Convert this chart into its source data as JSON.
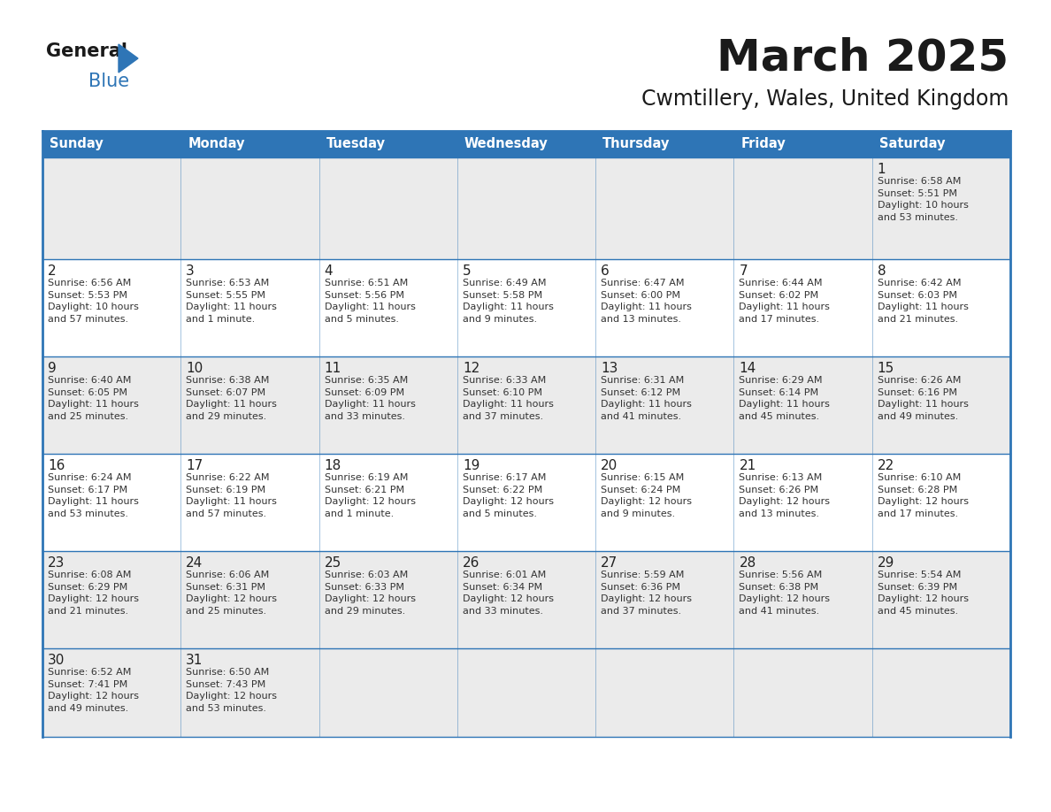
{
  "title": "March 2025",
  "subtitle": "Cwmtillery, Wales, United Kingdom",
  "header_bg_color": "#2E75B6",
  "header_text_color": "#FFFFFF",
  "cell_bg_row0": "#E8E8E8",
  "cell_bg_row1": "#FFFFFF",
  "cell_bg_row2": "#E8E8E8",
  "cell_bg_row3": "#FFFFFF",
  "cell_bg_row4": "#E8E8E8",
  "cell_bg_row5": "#F0F0F0",
  "border_color": "#2E75B6",
  "title_color": "#1a1a1a",
  "subtitle_color": "#1a1a1a",
  "text_color": "#333333",
  "day_num_color": "#222222",
  "day_headers": [
    "Sunday",
    "Monday",
    "Tuesday",
    "Wednesday",
    "Thursday",
    "Friday",
    "Saturday"
  ],
  "logo_general_color": "#1a1a1a",
  "logo_blue_color": "#2E75B6",
  "logo_triangle_color": "#2E75B6",
  "calendar": [
    [
      {
        "day": "",
        "info": ""
      },
      {
        "day": "",
        "info": ""
      },
      {
        "day": "",
        "info": ""
      },
      {
        "day": "",
        "info": ""
      },
      {
        "day": "",
        "info": ""
      },
      {
        "day": "",
        "info": ""
      },
      {
        "day": "1",
        "info": "Sunrise: 6:58 AM\nSunset: 5:51 PM\nDaylight: 10 hours\nand 53 minutes."
      }
    ],
    [
      {
        "day": "2",
        "info": "Sunrise: 6:56 AM\nSunset: 5:53 PM\nDaylight: 10 hours\nand 57 minutes."
      },
      {
        "day": "3",
        "info": "Sunrise: 6:53 AM\nSunset: 5:55 PM\nDaylight: 11 hours\nand 1 minute."
      },
      {
        "day": "4",
        "info": "Sunrise: 6:51 AM\nSunset: 5:56 PM\nDaylight: 11 hours\nand 5 minutes."
      },
      {
        "day": "5",
        "info": "Sunrise: 6:49 AM\nSunset: 5:58 PM\nDaylight: 11 hours\nand 9 minutes."
      },
      {
        "day": "6",
        "info": "Sunrise: 6:47 AM\nSunset: 6:00 PM\nDaylight: 11 hours\nand 13 minutes."
      },
      {
        "day": "7",
        "info": "Sunrise: 6:44 AM\nSunset: 6:02 PM\nDaylight: 11 hours\nand 17 minutes."
      },
      {
        "day": "8",
        "info": "Sunrise: 6:42 AM\nSunset: 6:03 PM\nDaylight: 11 hours\nand 21 minutes."
      }
    ],
    [
      {
        "day": "9",
        "info": "Sunrise: 6:40 AM\nSunset: 6:05 PM\nDaylight: 11 hours\nand 25 minutes."
      },
      {
        "day": "10",
        "info": "Sunrise: 6:38 AM\nSunset: 6:07 PM\nDaylight: 11 hours\nand 29 minutes."
      },
      {
        "day": "11",
        "info": "Sunrise: 6:35 AM\nSunset: 6:09 PM\nDaylight: 11 hours\nand 33 minutes."
      },
      {
        "day": "12",
        "info": "Sunrise: 6:33 AM\nSunset: 6:10 PM\nDaylight: 11 hours\nand 37 minutes."
      },
      {
        "day": "13",
        "info": "Sunrise: 6:31 AM\nSunset: 6:12 PM\nDaylight: 11 hours\nand 41 minutes."
      },
      {
        "day": "14",
        "info": "Sunrise: 6:29 AM\nSunset: 6:14 PM\nDaylight: 11 hours\nand 45 minutes."
      },
      {
        "day": "15",
        "info": "Sunrise: 6:26 AM\nSunset: 6:16 PM\nDaylight: 11 hours\nand 49 minutes."
      }
    ],
    [
      {
        "day": "16",
        "info": "Sunrise: 6:24 AM\nSunset: 6:17 PM\nDaylight: 11 hours\nand 53 minutes."
      },
      {
        "day": "17",
        "info": "Sunrise: 6:22 AM\nSunset: 6:19 PM\nDaylight: 11 hours\nand 57 minutes."
      },
      {
        "day": "18",
        "info": "Sunrise: 6:19 AM\nSunset: 6:21 PM\nDaylight: 12 hours\nand 1 minute."
      },
      {
        "day": "19",
        "info": "Sunrise: 6:17 AM\nSunset: 6:22 PM\nDaylight: 12 hours\nand 5 minutes."
      },
      {
        "day": "20",
        "info": "Sunrise: 6:15 AM\nSunset: 6:24 PM\nDaylight: 12 hours\nand 9 minutes."
      },
      {
        "day": "21",
        "info": "Sunrise: 6:13 AM\nSunset: 6:26 PM\nDaylight: 12 hours\nand 13 minutes."
      },
      {
        "day": "22",
        "info": "Sunrise: 6:10 AM\nSunset: 6:28 PM\nDaylight: 12 hours\nand 17 minutes."
      }
    ],
    [
      {
        "day": "23",
        "info": "Sunrise: 6:08 AM\nSunset: 6:29 PM\nDaylight: 12 hours\nand 21 minutes."
      },
      {
        "day": "24",
        "info": "Sunrise: 6:06 AM\nSunset: 6:31 PM\nDaylight: 12 hours\nand 25 minutes."
      },
      {
        "day": "25",
        "info": "Sunrise: 6:03 AM\nSunset: 6:33 PM\nDaylight: 12 hours\nand 29 minutes."
      },
      {
        "day": "26",
        "info": "Sunrise: 6:01 AM\nSunset: 6:34 PM\nDaylight: 12 hours\nand 33 minutes."
      },
      {
        "day": "27",
        "info": "Sunrise: 5:59 AM\nSunset: 6:36 PM\nDaylight: 12 hours\nand 37 minutes."
      },
      {
        "day": "28",
        "info": "Sunrise: 5:56 AM\nSunset: 6:38 PM\nDaylight: 12 hours\nand 41 minutes."
      },
      {
        "day": "29",
        "info": "Sunrise: 5:54 AM\nSunset: 6:39 PM\nDaylight: 12 hours\nand 45 minutes."
      }
    ],
    [
      {
        "day": "30",
        "info": "Sunrise: 6:52 AM\nSunset: 7:41 PM\nDaylight: 12 hours\nand 49 minutes."
      },
      {
        "day": "31",
        "info": "Sunrise: 6:50 AM\nSunset: 7:43 PM\nDaylight: 12 hours\nand 53 minutes."
      },
      {
        "day": "",
        "info": ""
      },
      {
        "day": "",
        "info": ""
      },
      {
        "day": "",
        "info": ""
      },
      {
        "day": "",
        "info": ""
      },
      {
        "day": "",
        "info": ""
      }
    ]
  ],
  "row_bg_colors": [
    "#EBEBEB",
    "#FFFFFF",
    "#EBEBEB",
    "#FFFFFF",
    "#EBEBEB",
    "#EBEBEB"
  ]
}
